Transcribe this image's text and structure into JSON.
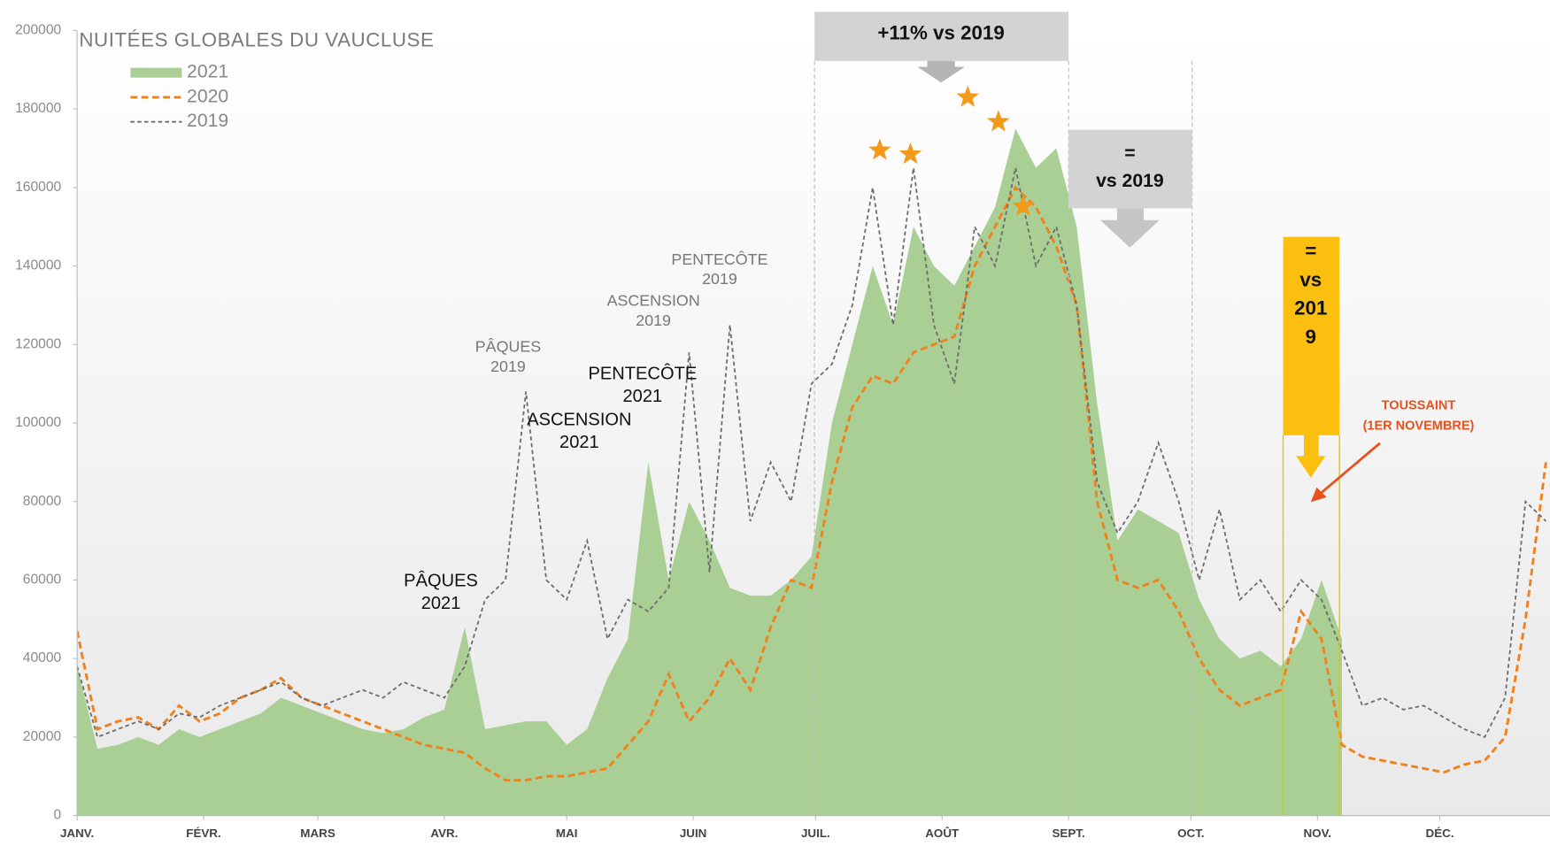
{
  "chart_data": {
    "type": "area-line",
    "title": "NUITÉES GLOBALES DU VAUCLUSE",
    "x": [
      0,
      5,
      10,
      15,
      20,
      25,
      30,
      35,
      40,
      45,
      50,
      55,
      60,
      65,
      70,
      75,
      80,
      85,
      90,
      95,
      100,
      105,
      110,
      115,
      120,
      125,
      130,
      135,
      140,
      145,
      150,
      155,
      160,
      165,
      170,
      175,
      180,
      185,
      190,
      195,
      200,
      205,
      210,
      215,
      220,
      225,
      230,
      235,
      240,
      245,
      250,
      255,
      260,
      265,
      270,
      275,
      280,
      285,
      290,
      295,
      300,
      305,
      310,
      315,
      320,
      325,
      330,
      335,
      340,
      345,
      350,
      355,
      360
    ],
    "series": [
      {
        "name": "2021",
        "kind": "area",
        "color": "#a9cf95",
        "values": [
          38000,
          17000,
          18000,
          20000,
          18000,
          22000,
          20000,
          22000,
          24000,
          26000,
          30000,
          28000,
          26000,
          24000,
          22000,
          21000,
          22000,
          25000,
          27000,
          48000,
          22000,
          23000,
          24000,
          24000,
          18000,
          22000,
          35000,
          45000,
          90000,
          60000,
          80000,
          70000,
          58000,
          56000,
          56000,
          60000,
          66000,
          100000,
          120000,
          140000,
          125000,
          150000,
          140000,
          135000,
          145000,
          155000,
          175000,
          165000,
          170000,
          150000,
          105000,
          70000,
          78000,
          75000,
          72000,
          55000,
          45000,
          40000,
          42000,
          38000,
          45000,
          60000,
          45000,
          null,
          null,
          null,
          null,
          null,
          null,
          null,
          null,
          null,
          null
        ]
      },
      {
        "name": "2020",
        "kind": "line",
        "color": "#f0821e",
        "values": [
          47000,
          22000,
          24000,
          25000,
          22000,
          28000,
          24000,
          26000,
          30000,
          32000,
          35000,
          30000,
          28000,
          26000,
          24000,
          22000,
          20000,
          18000,
          17000,
          16000,
          12000,
          9000,
          9000,
          10000,
          10000,
          11000,
          12000,
          18000,
          24000,
          36000,
          24000,
          30000,
          40000,
          32000,
          48000,
          60000,
          58000,
          85000,
          104000,
          112000,
          110000,
          118000,
          120000,
          122000,
          140000,
          150000,
          160000,
          155000,
          145000,
          130000,
          80000,
          60000,
          58000,
          60000,
          52000,
          40000,
          32000,
          28000,
          30000,
          32000,
          52000,
          45000,
          18000,
          15000,
          14000,
          13000,
          12000,
          11000,
          13000,
          14000,
          20000,
          50000,
          90000
        ]
      },
      {
        "name": "2019",
        "kind": "line",
        "color": "#6b6b6b",
        "values": [
          38000,
          20000,
          22000,
          24000,
          22000,
          26000,
          25000,
          28000,
          30000,
          32000,
          34000,
          30000,
          28000,
          30000,
          32000,
          30000,
          34000,
          32000,
          30000,
          38000,
          55000,
          60000,
          108000,
          60000,
          55000,
          70000,
          45000,
          55000,
          52000,
          58000,
          118000,
          62000,
          125000,
          75000,
          90000,
          80000,
          110000,
          115000,
          130000,
          160000,
          125000,
          165000,
          125000,
          110000,
          150000,
          140000,
          165000,
          140000,
          150000,
          130000,
          85000,
          72000,
          80000,
          95000,
          80000,
          60000,
          78000,
          55000,
          60000,
          52000,
          60000,
          55000,
          42000,
          28000,
          30000,
          27000,
          28000,
          25000,
          22000,
          20000,
          30000,
          80000,
          75000
        ]
      }
    ],
    "xlim": [
      0,
      361
    ],
    "xticks": [
      {
        "value": 0,
        "label": "JANV."
      },
      {
        "value": 31,
        "label": "FÉVR."
      },
      {
        "value": 59,
        "label": "MARS"
      },
      {
        "value": 90,
        "label": "AVR."
      },
      {
        "value": 120,
        "label": "MAI"
      },
      {
        "value": 151,
        "label": "JUIN"
      },
      {
        "value": 181,
        "label": "JUIL."
      },
      {
        "value": 212,
        "label": "AOÛT"
      },
      {
        "value": 243,
        "label": "SEPT."
      },
      {
        "value": 273,
        "label": "OCT."
      },
      {
        "value": 304,
        "label": "NOV."
      },
      {
        "value": 334,
        "label": "DÉC."
      }
    ],
    "ylim": [
      0,
      200000
    ],
    "yticks": [
      0,
      20000,
      40000,
      60000,
      80000,
      100000,
      120000,
      140000,
      160000,
      180000,
      200000
    ],
    "annotations": [
      {
        "text": [
          "PÂQUES",
          "2021"
        ]
      },
      {
        "text": [
          "ASCENSION",
          "2021"
        ]
      },
      {
        "text": [
          "PENTECÔTE",
          "2021"
        ]
      },
      {
        "text": [
          "PÂQUES",
          "2019"
        ]
      },
      {
        "text": [
          "ASCENSION",
          "2019"
        ]
      },
      {
        "text": [
          "PENTECÔTE",
          "2019"
        ]
      },
      {
        "text": [
          "+11% vs 2019"
        ]
      },
      {
        "text": [
          "=",
          "vs 2019"
        ]
      },
      {
        "text": [
          "=",
          "vs",
          "201",
          "9"
        ]
      },
      {
        "text": [
          "TOUSSAINT",
          "(1ER NOVEMBRE)"
        ]
      }
    ]
  }
}
